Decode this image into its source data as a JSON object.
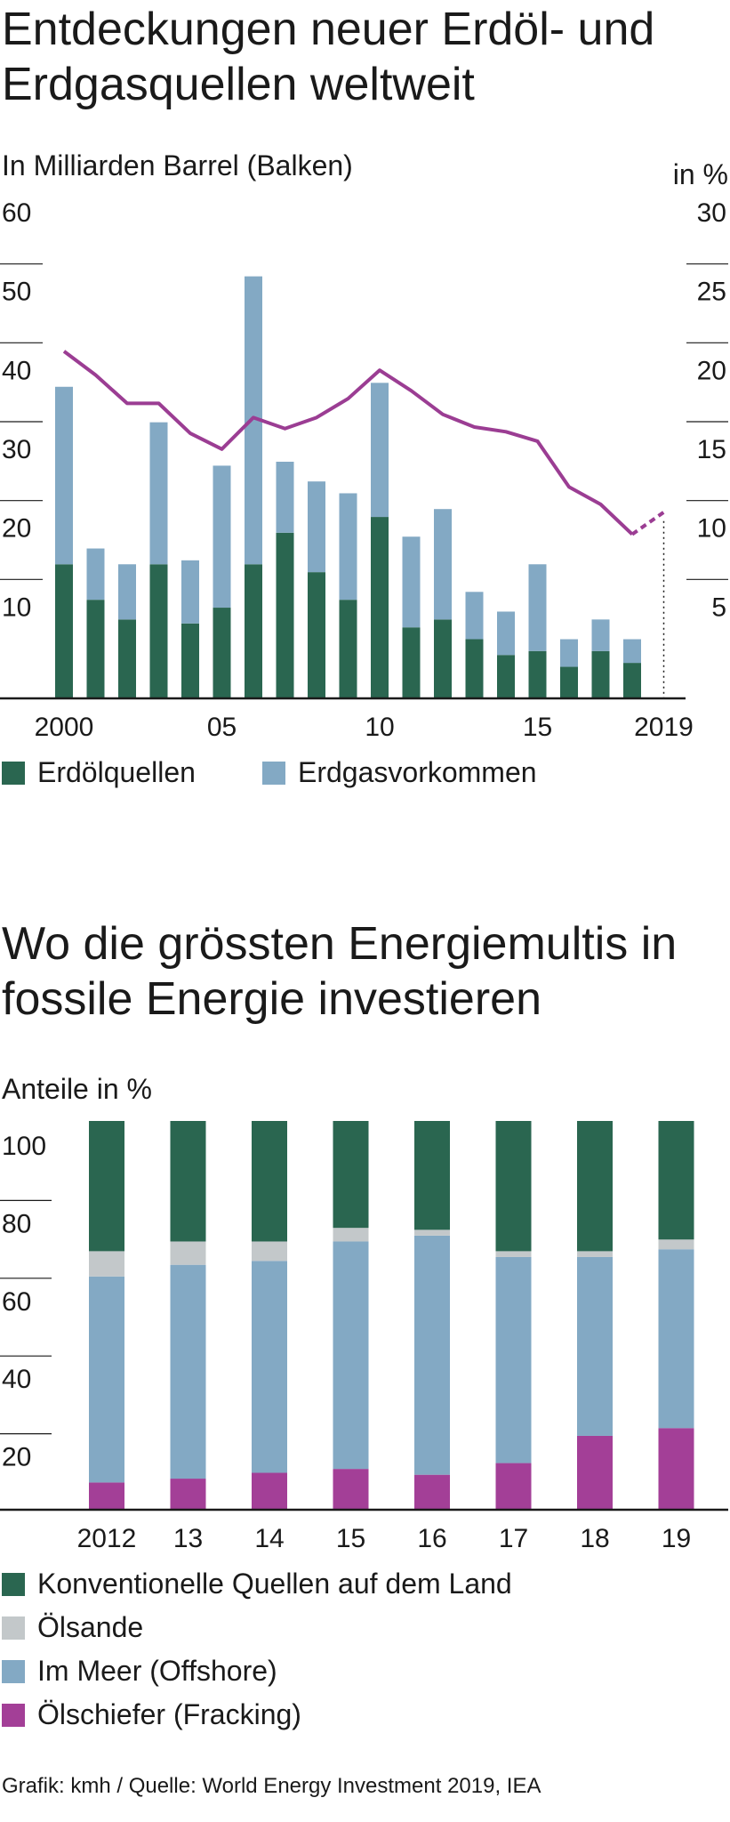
{
  "chart_data": [
    {
      "type": "bar",
      "title": "Entdeckungen neuer Erdöl- und Erdgasquellen weltweit",
      "ylabel_left": "In Milliarden Barrel (Balken)",
      "ylabel_right": "in %",
      "left_ticks": [
        "60",
        "50",
        "40",
        "30",
        "20",
        "10"
      ],
      "right_ticks": [
        "30",
        "25",
        "20",
        "15",
        "10",
        "5"
      ],
      "ylim_left": [
        0,
        60
      ],
      "ylim_right": [
        0,
        30
      ],
      "x_tick_labels": [
        {
          "year": 2000,
          "label": "2000"
        },
        {
          "year": 2005,
          "label": "05"
        },
        {
          "year": 2010,
          "label": "10"
        },
        {
          "year": 2015,
          "label": "15"
        },
        {
          "year": 2019,
          "label": "2019"
        }
      ],
      "categories": [
        2000,
        2001,
        2002,
        2003,
        2004,
        2005,
        2006,
        2007,
        2008,
        2009,
        2010,
        2011,
        2012,
        2013,
        2014,
        2015,
        2016,
        2017,
        2018
      ],
      "stacked": true,
      "series": [
        {
          "name": "Erdölquellen",
          "color": "#2a6650",
          "values": [
            17,
            12.5,
            10,
            17,
            9.5,
            11.5,
            17,
            21,
            16,
            12.5,
            23,
            9,
            10,
            7.5,
            5.5,
            6,
            4,
            6,
            4.5
          ]
        },
        {
          "name": "Erdgasvorkommen",
          "color": "#83a9c4",
          "values": [
            22.5,
            6.5,
            7,
            18,
            8,
            18,
            36.5,
            9,
            11.5,
            13.5,
            17,
            11.5,
            14,
            6,
            5.5,
            11,
            3.5,
            4,
            3
          ]
        }
      ],
      "line_series": {
        "axis": "right",
        "color": "#9b3d93",
        "x": [
          2000,
          2001,
          2002,
          2003,
          2004,
          2005,
          2006,
          2007,
          2008,
          2009,
          2010,
          2011,
          2012,
          2013,
          2014,
          2015,
          2016,
          2017,
          2018
        ],
        "values": [
          22,
          20.5,
          18.7,
          18.7,
          16.8,
          15.8,
          17.8,
          17.1,
          17.8,
          19,
          20.8,
          19.5,
          18,
          17.2,
          16.9,
          16.3,
          13.4,
          12.3,
          10.4
        ],
        "projected": {
          "x": [
            2018,
            2019
          ],
          "values": [
            10.4,
            11.8
          ]
        }
      }
    },
    {
      "type": "bar",
      "title": "Wo die grössten Energiemultis in fossile Energie investieren",
      "ylabel": "Anteile in %",
      "ylim": [
        0,
        100
      ],
      "y_ticks": [
        "100",
        "80",
        "60",
        "40",
        "20"
      ],
      "categories": [
        "2012",
        "13",
        "14",
        "15",
        "16",
        "17",
        "18",
        "19"
      ],
      "stacked": true,
      "series": [
        {
          "name": "Ölschiefer (Fracking)",
          "color": "#a33f97",
          "values": [
            7,
            8,
            9.5,
            10.5,
            9,
            12,
            19,
            21
          ]
        },
        {
          "name": "Im Meer (Offshore)",
          "color": "#83a9c4",
          "values": [
            53,
            55,
            54.5,
            58.5,
            61.5,
            53,
            46,
            46
          ]
        },
        {
          "name": "Ölsande",
          "color": "#c3c8ca",
          "values": [
            6.5,
            6,
            5,
            3.5,
            1.5,
            1.5,
            1.5,
            2.5
          ]
        },
        {
          "name": "Konventionelle Quellen auf dem Land",
          "color": "#2a6650",
          "values": [
            33.5,
            31,
            31,
            27.5,
            28,
            33.5,
            33.5,
            30.5
          ]
        }
      ]
    }
  ],
  "legend1": [
    "Erdölquellen",
    "Erdgasvorkommen"
  ],
  "legend2": [
    "Konventionelle Quellen auf dem Land",
    "Ölsande",
    "Im Meer (Offshore)",
    "Ölschiefer (Fracking)"
  ],
  "footer": "Grafik: kmh / Quelle: World Energy Investment 2019, IEA"
}
